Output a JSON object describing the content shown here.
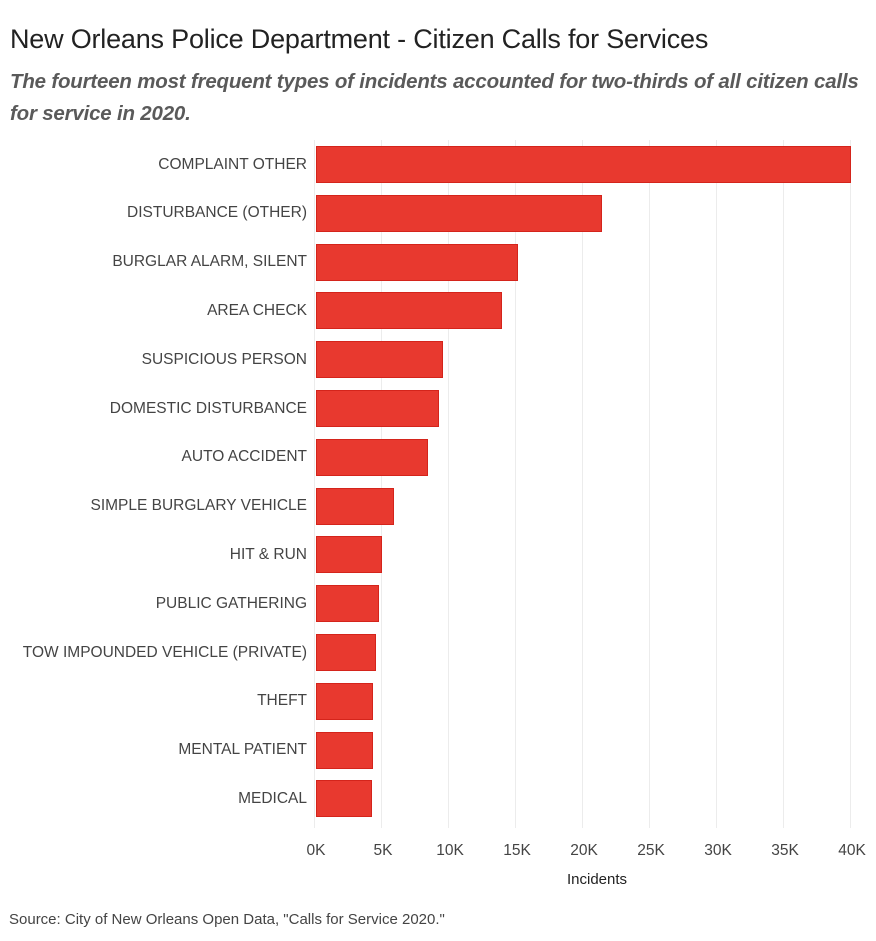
{
  "header": {
    "title": "New Orleans Police Department - Citizen Calls for Services",
    "subtitle": "The fourteen most frequent types of incidents accounted for two-thirds of all citizen calls for service in 2020."
  },
  "footer": {
    "source": "Source: City of New Orleans Open Data, \"Calls for Service 2020.\""
  },
  "colors": {
    "bar": "#e8392f",
    "grid": "#ececec"
  },
  "chart_data": {
    "type": "bar",
    "orientation": "horizontal",
    "title": "New Orleans Police Department - Citizen Calls for Services",
    "subtitle": "The fourteen most frequent types of incidents accounted for two-thirds of all citizen calls for service in 2020.",
    "xlabel": "Incidents",
    "ylabel": "",
    "xlim": [
      0,
      40500
    ],
    "x_ticks": [
      "0K",
      "5K",
      "10K",
      "15K",
      "20K",
      "25K",
      "30K",
      "35K",
      "40K"
    ],
    "grid": "vertical",
    "categories": [
      "COMPLAINT OTHER",
      "DISTURBANCE (OTHER)",
      "BURGLAR ALARM, SILENT",
      "AREA CHECK",
      "SUSPICIOUS PERSON",
      "DOMESTIC DISTURBANCE",
      "AUTO ACCIDENT",
      "SIMPLE BURGLARY VEHICLE",
      "HIT & RUN",
      "PUBLIC GATHERING",
      "TOW IMPOUNDED VEHICLE (PRIVATE)",
      "THEFT",
      "MENTAL PATIENT",
      "MEDICAL"
    ],
    "values": [
      40100,
      21500,
      15200,
      14000,
      9600,
      9300,
      8500,
      6000,
      5100,
      4850,
      4600,
      4400,
      4400,
      4300
    ],
    "source": "Source: City of New Orleans Open Data, \"Calls for Service 2020.\""
  }
}
